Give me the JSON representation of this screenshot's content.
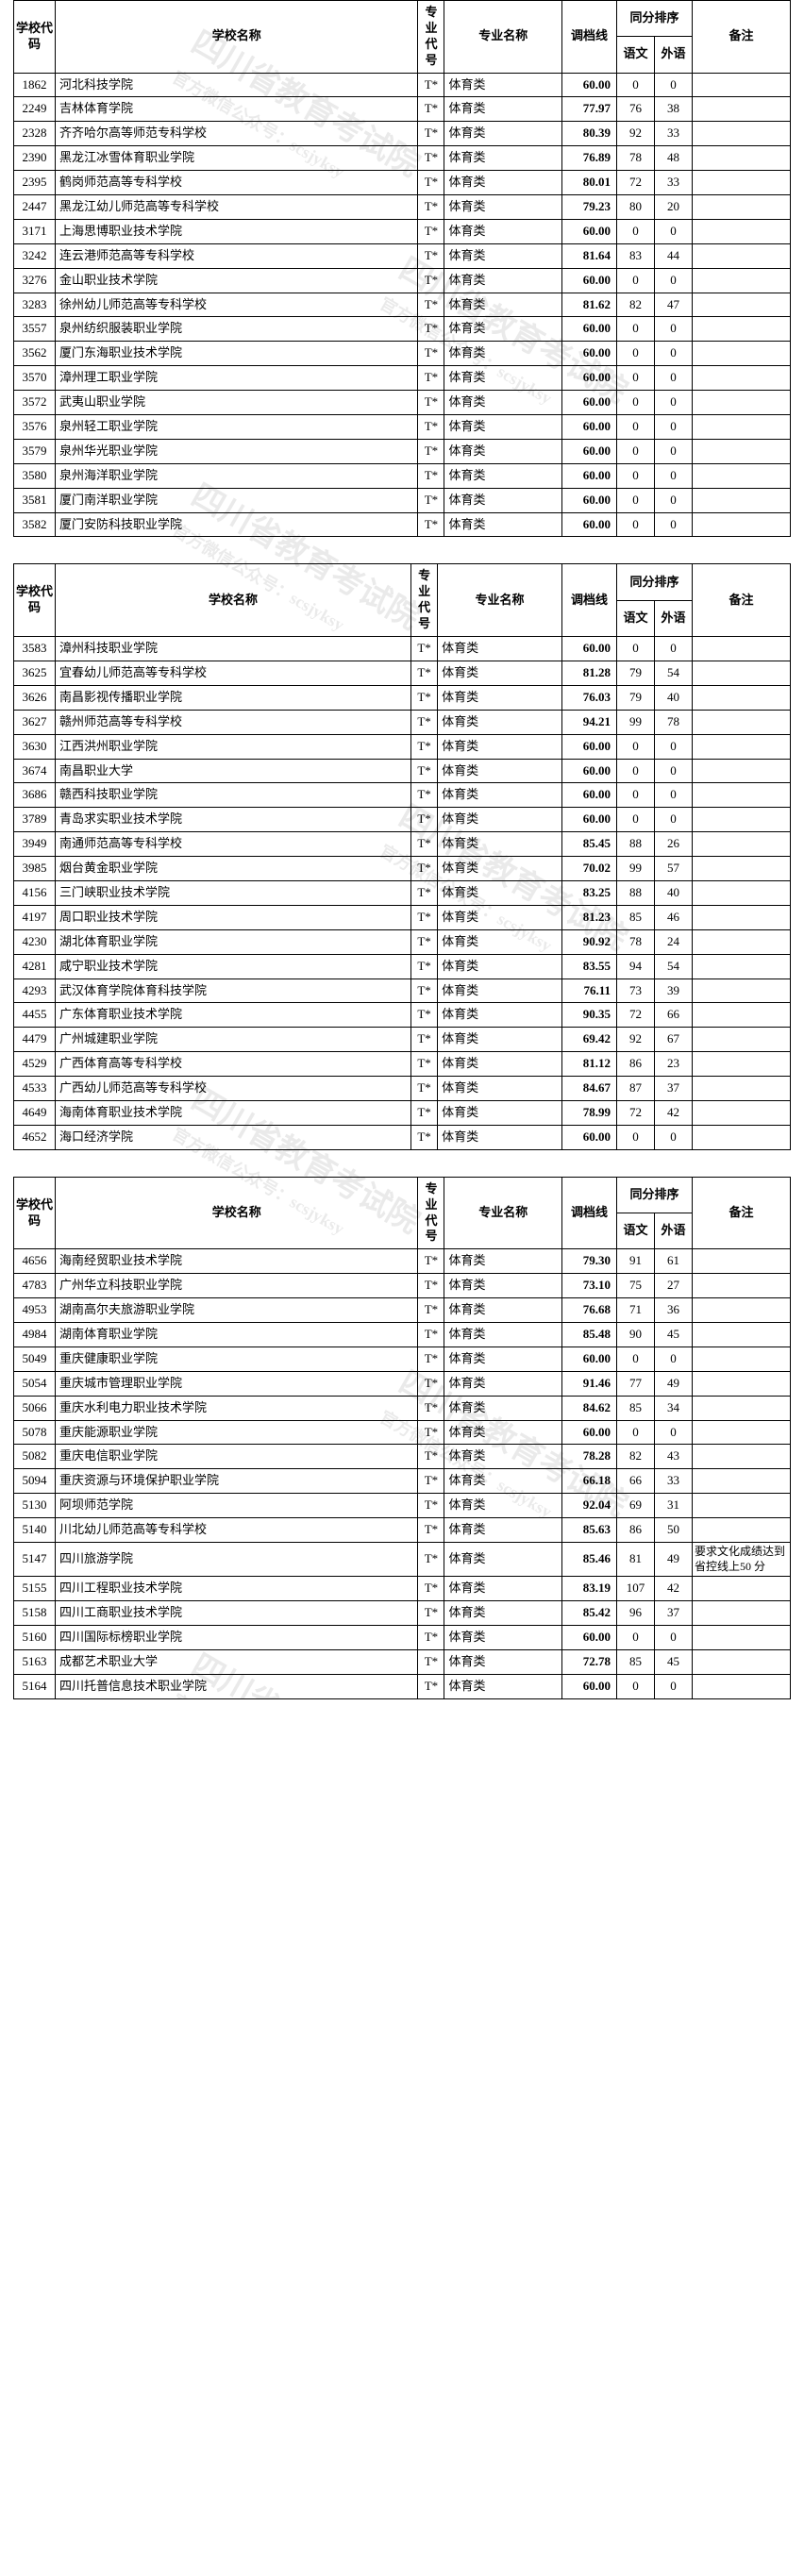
{
  "headers": {
    "school_code": "学校代码",
    "school_name": "学校名称",
    "major_code": "专业代号",
    "major_name": "专业名称",
    "cutoff": "调档线",
    "same_score": "同分排序",
    "chinese": "语文",
    "foreign": "外语",
    "note": "备注"
  },
  "common": {
    "major_code": "T*",
    "major_name": "体育类"
  },
  "tables": [
    {
      "rows": [
        {
          "code": "1862",
          "name": "河北科技学院",
          "score": "60.00",
          "c": "0",
          "f": "0",
          "note": ""
        },
        {
          "code": "2249",
          "name": "吉林体育学院",
          "score": "77.97",
          "c": "76",
          "f": "38",
          "note": ""
        },
        {
          "code": "2328",
          "name": "齐齐哈尔高等师范专科学校",
          "score": "80.39",
          "c": "92",
          "f": "33",
          "note": ""
        },
        {
          "code": "2390",
          "name": "黑龙江冰雪体育职业学院",
          "score": "76.89",
          "c": "78",
          "f": "48",
          "note": ""
        },
        {
          "code": "2395",
          "name": "鹤岗师范高等专科学校",
          "score": "80.01",
          "c": "72",
          "f": "33",
          "note": ""
        },
        {
          "code": "2447",
          "name": "黑龙江幼儿师范高等专科学校",
          "score": "79.23",
          "c": "80",
          "f": "20",
          "note": ""
        },
        {
          "code": "3171",
          "name": "上海思博职业技术学院",
          "score": "60.00",
          "c": "0",
          "f": "0",
          "note": ""
        },
        {
          "code": "3242",
          "name": "连云港师范高等专科学校",
          "score": "81.64",
          "c": "83",
          "f": "44",
          "note": ""
        },
        {
          "code": "3276",
          "name": "金山职业技术学院",
          "score": "60.00",
          "c": "0",
          "f": "0",
          "note": ""
        },
        {
          "code": "3283",
          "name": "徐州幼儿师范高等专科学校",
          "score": "81.62",
          "c": "82",
          "f": "47",
          "note": ""
        },
        {
          "code": "3557",
          "name": "泉州纺织服装职业学院",
          "score": "60.00",
          "c": "0",
          "f": "0",
          "note": ""
        },
        {
          "code": "3562",
          "name": "厦门东海职业技术学院",
          "score": "60.00",
          "c": "0",
          "f": "0",
          "note": ""
        },
        {
          "code": "3570",
          "name": "漳州理工职业学院",
          "score": "60.00",
          "c": "0",
          "f": "0",
          "note": ""
        },
        {
          "code": "3572",
          "name": "武夷山职业学院",
          "score": "60.00",
          "c": "0",
          "f": "0",
          "note": ""
        },
        {
          "code": "3576",
          "name": "泉州轻工职业学院",
          "score": "60.00",
          "c": "0",
          "f": "0",
          "note": ""
        },
        {
          "code": "3579",
          "name": "泉州华光职业学院",
          "score": "60.00",
          "c": "0",
          "f": "0",
          "note": ""
        },
        {
          "code": "3580",
          "name": "泉州海洋职业学院",
          "score": "60.00",
          "c": "0",
          "f": "0",
          "note": ""
        },
        {
          "code": "3581",
          "name": "厦门南洋职业学院",
          "score": "60.00",
          "c": "0",
          "f": "0",
          "note": ""
        },
        {
          "code": "3582",
          "name": "厦门安防科技职业学院",
          "score": "60.00",
          "c": "0",
          "f": "0",
          "note": ""
        }
      ]
    },
    {
      "rows": [
        {
          "code": "3583",
          "name": "漳州科技职业学院",
          "score": "60.00",
          "c": "0",
          "f": "0",
          "note": ""
        },
        {
          "code": "3625",
          "name": "宜春幼儿师范高等专科学校",
          "score": "81.28",
          "c": "79",
          "f": "54",
          "note": ""
        },
        {
          "code": "3626",
          "name": "南昌影视传播职业学院",
          "score": "76.03",
          "c": "79",
          "f": "40",
          "note": ""
        },
        {
          "code": "3627",
          "name": "赣州师范高等专科学校",
          "score": "94.21",
          "c": "99",
          "f": "78",
          "note": ""
        },
        {
          "code": "3630",
          "name": "江西洪州职业学院",
          "score": "60.00",
          "c": "0",
          "f": "0",
          "note": ""
        },
        {
          "code": "3674",
          "name": "南昌职业大学",
          "score": "60.00",
          "c": "0",
          "f": "0",
          "note": ""
        },
        {
          "code": "3686",
          "name": "赣西科技职业学院",
          "score": "60.00",
          "c": "0",
          "f": "0",
          "note": ""
        },
        {
          "code": "3789",
          "name": "青岛求实职业技术学院",
          "score": "60.00",
          "c": "0",
          "f": "0",
          "note": ""
        },
        {
          "code": "3949",
          "name": "南通师范高等专科学校",
          "score": "85.45",
          "c": "88",
          "f": "26",
          "note": ""
        },
        {
          "code": "3985",
          "name": "烟台黄金职业学院",
          "score": "70.02",
          "c": "99",
          "f": "57",
          "note": ""
        },
        {
          "code": "4156",
          "name": "三门峡职业技术学院",
          "score": "83.25",
          "c": "88",
          "f": "40",
          "note": ""
        },
        {
          "code": "4197",
          "name": "周口职业技术学院",
          "score": "81.23",
          "c": "85",
          "f": "46",
          "note": ""
        },
        {
          "code": "4230",
          "name": "湖北体育职业学院",
          "score": "90.92",
          "c": "78",
          "f": "24",
          "note": ""
        },
        {
          "code": "4281",
          "name": "咸宁职业技术学院",
          "score": "83.55",
          "c": "94",
          "f": "54",
          "note": ""
        },
        {
          "code": "4293",
          "name": "武汉体育学院体育科技学院",
          "score": "76.11",
          "c": "73",
          "f": "39",
          "note": ""
        },
        {
          "code": "4455",
          "name": "广东体育职业技术学院",
          "score": "90.35",
          "c": "72",
          "f": "66",
          "note": ""
        },
        {
          "code": "4479",
          "name": "广州城建职业学院",
          "score": "69.42",
          "c": "92",
          "f": "67",
          "note": ""
        },
        {
          "code": "4529",
          "name": "广西体育高等专科学校",
          "score": "81.12",
          "c": "86",
          "f": "23",
          "note": ""
        },
        {
          "code": "4533",
          "name": "广西幼儿师范高等专科学校",
          "score": "84.67",
          "c": "87",
          "f": "37",
          "note": ""
        },
        {
          "code": "4649",
          "name": "海南体育职业技术学院",
          "score": "78.99",
          "c": "72",
          "f": "42",
          "note": ""
        },
        {
          "code": "4652",
          "name": "海口经济学院",
          "score": "60.00",
          "c": "0",
          "f": "0",
          "note": ""
        }
      ]
    },
    {
      "rows": [
        {
          "code": "4656",
          "name": "海南经贸职业技术学院",
          "score": "79.30",
          "c": "91",
          "f": "61",
          "note": ""
        },
        {
          "code": "4783",
          "name": "广州华立科技职业学院",
          "score": "73.10",
          "c": "75",
          "f": "27",
          "note": ""
        },
        {
          "code": "4953",
          "name": "湖南高尔夫旅游职业学院",
          "score": "76.68",
          "c": "71",
          "f": "36",
          "note": ""
        },
        {
          "code": "4984",
          "name": "湖南体育职业学院",
          "score": "85.48",
          "c": "90",
          "f": "45",
          "note": ""
        },
        {
          "code": "5049",
          "name": "重庆健康职业学院",
          "score": "60.00",
          "c": "0",
          "f": "0",
          "note": ""
        },
        {
          "code": "5054",
          "name": "重庆城市管理职业学院",
          "score": "91.46",
          "c": "77",
          "f": "49",
          "note": ""
        },
        {
          "code": "5066",
          "name": "重庆水利电力职业技术学院",
          "score": "84.62",
          "c": "85",
          "f": "34",
          "note": ""
        },
        {
          "code": "5078",
          "name": "重庆能源职业学院",
          "score": "60.00",
          "c": "0",
          "f": "0",
          "note": ""
        },
        {
          "code": "5082",
          "name": "重庆电信职业学院",
          "score": "78.28",
          "c": "82",
          "f": "43",
          "note": ""
        },
        {
          "code": "5094",
          "name": "重庆资源与环境保护职业学院",
          "score": "66.18",
          "c": "66",
          "f": "33",
          "note": ""
        },
        {
          "code": "5130",
          "name": "阿坝师范学院",
          "score": "92.04",
          "c": "69",
          "f": "31",
          "note": ""
        },
        {
          "code": "5140",
          "name": "川北幼儿师范高等专科学校",
          "score": "85.63",
          "c": "86",
          "f": "50",
          "note": ""
        },
        {
          "code": "5147",
          "name": "四川旅游学院",
          "score": "85.46",
          "c": "81",
          "f": "49",
          "note": "要求文化成绩达到省控线上50 分"
        },
        {
          "code": "5155",
          "name": "四川工程职业技术学院",
          "score": "83.19",
          "c": "107",
          "f": "42",
          "note": ""
        },
        {
          "code": "5158",
          "name": "四川工商职业技术学院",
          "score": "85.42",
          "c": "96",
          "f": "37",
          "note": ""
        },
        {
          "code": "5160",
          "name": "四川国际标榜职业学院",
          "score": "60.00",
          "c": "0",
          "f": "0",
          "note": ""
        },
        {
          "code": "5163",
          "name": "成都艺术职业大学",
          "score": "72.78",
          "c": "85",
          "f": "45",
          "note": ""
        },
        {
          "code": "5164",
          "name": "四川托普信息技术职业学院",
          "score": "60.00",
          "c": "0",
          "f": "0",
          "note": ""
        }
      ]
    }
  ],
  "watermark": {
    "text_main": "四川省教育考试院",
    "text_sub": "官方微信公众号：scsjyksy"
  },
  "style": {
    "border_color": "#000000",
    "bg": "#ffffff",
    "font_main": "SimSun",
    "font_size_body": 13,
    "font_size_note": 12,
    "score_bold": true,
    "watermark_opacity": 0.08,
    "watermark_angle_deg": 30,
    "watermark_fontsize": 34
  }
}
